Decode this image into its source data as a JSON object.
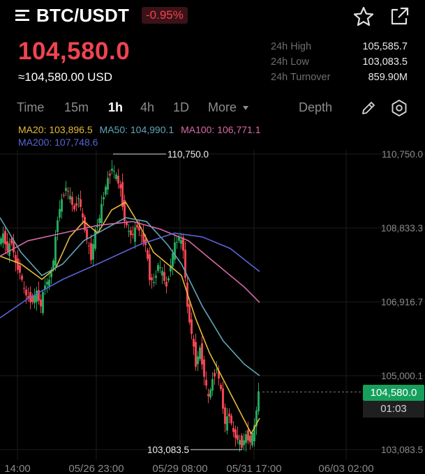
{
  "header": {
    "menu_icon": "menu-icon",
    "pair": "BTC/USDT",
    "change": "-0.95%",
    "favorite_icon": "star-icon",
    "share_icon": "share-external-icon"
  },
  "price": {
    "last": "104,580.0",
    "usd": "≈104,580.00 USD"
  },
  "stats": [
    {
      "label": "24h High",
      "value": "105,585.7"
    },
    {
      "label": "24h Low",
      "value": "103,083.5"
    },
    {
      "label": "24h Turnover",
      "value": "859.90M"
    }
  ],
  "tabs": {
    "time": "Time",
    "m15": "15m",
    "h1": "1h",
    "h4": "4h",
    "d1": "1D",
    "more": "More",
    "depth": "Depth",
    "active": "1h"
  },
  "ma": [
    {
      "label": "MA20: 103,896.5",
      "color": "#e7b93a"
    },
    {
      "label": "MA50: 104,990.1",
      "color": "#5fa6b8"
    },
    {
      "label": "MA100: 106,771.1",
      "color": "#d66aa7"
    },
    {
      "label": "MA200: 107,748.6",
      "color": "#5964d4"
    }
  ],
  "colors": {
    "up": "#26a65b",
    "down": "#ef4450",
    "grid": "#1b1b1e"
  },
  "chart_data": {
    "type": "candlestick",
    "y_ticks": [
      "110,750.0",
      "108,833.3",
      "106,916.7",
      "105,000.1",
      "103,083.5"
    ],
    "y_tick_values": [
      110750.0,
      108833.3,
      106916.7,
      105000.1,
      103083.5
    ],
    "x_ticks": [
      "14:00",
      "05/26 23:00",
      "05/29 08:00",
      "05/31 17:00",
      "06/03 02:00"
    ],
    "high_marker": "110,750.0",
    "low_marker": "103,083.5",
    "high": 110750.0,
    "low": 103083.5,
    "last_price": "104,580.0",
    "last_value": 104580.0,
    "countdown": "01:03"
  }
}
